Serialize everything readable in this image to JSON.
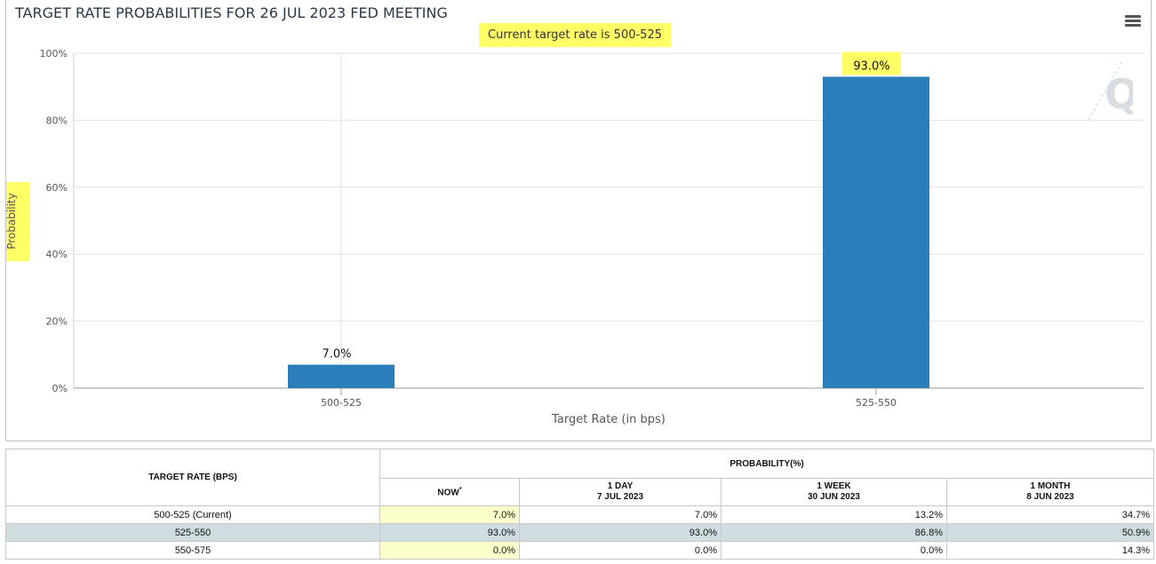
{
  "chart": {
    "title": "TARGET RATE PROBABILITIES FOR 26 JUL 2023 FED MEETING",
    "subtitle": "Current target rate is 500-525"
  },
  "chart_data": {
    "type": "bar",
    "categories": [
      "500-525",
      "525-550"
    ],
    "values": [
      7.0,
      93.0
    ],
    "data_labels": [
      "7.0%",
      "93.0%"
    ],
    "highlighted_label_index": 1,
    "xlabel": "Target Rate (in bps)",
    "ylabel": "Probability",
    "ylim": [
      0,
      100
    ],
    "yticks": [
      "0%",
      "20%",
      "40%",
      "60%",
      "80%",
      "100%"
    ],
    "ytick_values": [
      0,
      20,
      40,
      60,
      80,
      100
    ],
    "grid": true,
    "bar_color": "#2a7fbb"
  },
  "colors": {
    "highlight": "#ffff66",
    "row_highlight": "#cfdde0",
    "now_cell": "#ffffcc"
  },
  "table": {
    "target_header": "TARGET RATE (BPS)",
    "prob_header": "PROBABILITY(%)",
    "columns": [
      {
        "line1": "NOW",
        "line2": "",
        "mark": "*"
      },
      {
        "line1": "1 DAY",
        "line2": "7 JUL 2023",
        "mark": ""
      },
      {
        "line1": "1 WEEK",
        "line2": "30 JUN 2023",
        "mark": ""
      },
      {
        "line1": "1 MONTH",
        "line2": "8 JUN 2023",
        "mark": ""
      }
    ],
    "rows": [
      {
        "rate": "500-525 (Current)",
        "values": [
          "7.0%",
          "7.0%",
          "13.2%",
          "34.7%"
        ],
        "highlight": false
      },
      {
        "rate": "525-550",
        "values": [
          "93.0%",
          "93.0%",
          "86.8%",
          "50.9%"
        ],
        "highlight": true
      },
      {
        "rate": "550-575",
        "values": [
          "0.0%",
          "0.0%",
          "0.0%",
          "14.3%"
        ],
        "highlight": false
      }
    ]
  },
  "icons": {
    "menu": "hamburger-menu-icon",
    "watermark": "q-logo-icon"
  }
}
